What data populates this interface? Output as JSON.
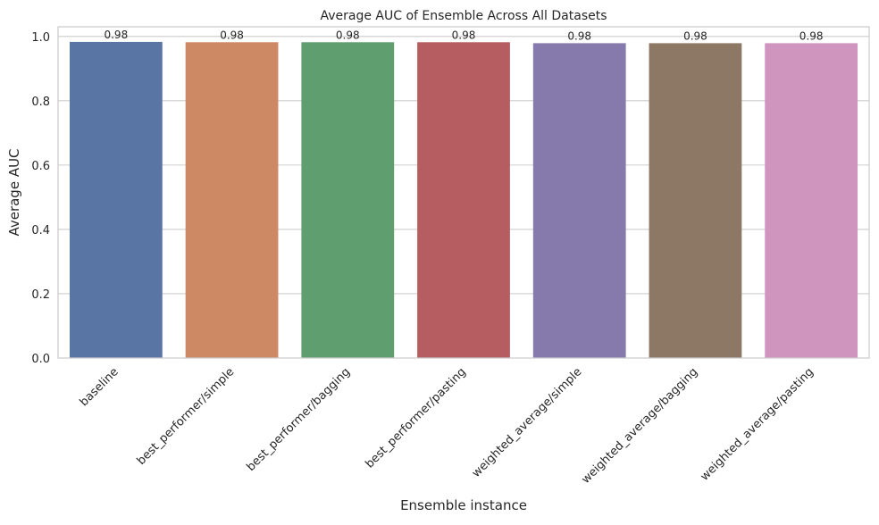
{
  "chart_data": {
    "type": "bar",
    "title": "Average AUC of Ensemble Across All Datasets",
    "xlabel": "Ensemble instance",
    "ylabel": "Average AUC",
    "categories": [
      "baseline",
      "best_performer/simple",
      "best_performer/bagging",
      "best_performer/pasting",
      "weighted_average/simple",
      "weighted_average/bagging",
      "weighted_average/pasting"
    ],
    "values": [
      0.983,
      0.982,
      0.982,
      0.982,
      0.979,
      0.979,
      0.979
    ],
    "data_labels": [
      "0.98",
      "0.98",
      "0.98",
      "0.98",
      "0.98",
      "0.98",
      "0.98"
    ],
    "yticks": [
      "0.0",
      "0.2",
      "0.4",
      "0.6",
      "0.8",
      "1.0"
    ],
    "ylim": [
      0,
      1.03
    ],
    "grid": "horizontal",
    "colors": [
      "#5875a4",
      "#cc8963",
      "#5f9e6e",
      "#b55d60",
      "#857aab",
      "#8d7866",
      "#d095bf"
    ],
    "grid_color": "#cccccc",
    "frame_color": "#cccccc"
  }
}
